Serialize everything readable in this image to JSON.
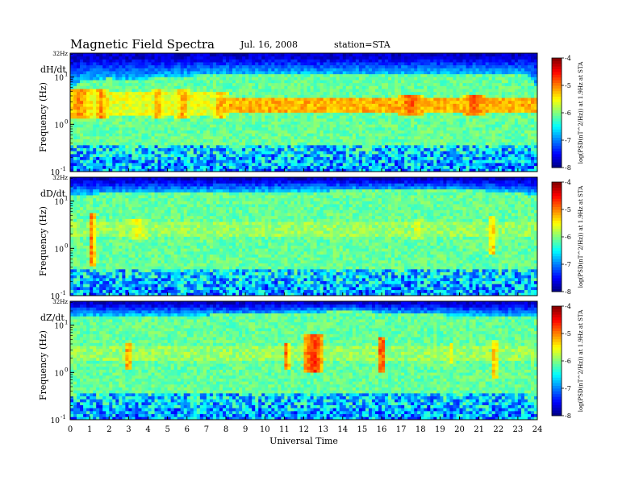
{
  "header": {
    "title": "Magnetic  Field  Spectra",
    "date": "Jul.  16, 2008",
    "station": "station=STA"
  },
  "chart_data": [
    {
      "type": "heatmap",
      "component": "dH/dt",
      "ylabel": "Frequency  (Hz)",
      "y_scale": "log",
      "ylim": [
        0.1,
        32
      ],
      "y_ticks": [
        {
          "value": 32,
          "label": "32Hz"
        },
        {
          "value": 10,
          "label": "10"
        },
        {
          "value": 1,
          "label": "10"
        },
        {
          "value": 0.1,
          "label": "10"
        }
      ],
      "y_tick_exponents": [
        "",
        "1",
        "0",
        "-1"
      ],
      "xlim": [
        0,
        24
      ],
      "colorbar": {
        "label": "log(PSD(nT^2/Hz)) at 1.9Hz at STA",
        "range": [
          -8,
          -4
        ],
        "ticks": [
          "-4",
          "-5",
          "-6",
          "-7",
          "-8"
        ]
      },
      "upper_boundary_hz": [
        [
          0,
          5.5
        ],
        [
          0.5,
          8
        ],
        [
          1,
          9
        ],
        [
          2,
          9.5
        ],
        [
          3,
          9
        ],
        [
          4,
          9.3
        ],
        [
          5,
          10.5
        ],
        [
          7,
          11
        ],
        [
          8,
          11.5
        ],
        [
          10,
          11.5
        ],
        [
          14,
          11.5
        ],
        [
          18,
          11.5
        ],
        [
          21,
          11.5
        ],
        [
          23,
          11.2
        ],
        [
          23.5,
          11
        ],
        [
          23.8,
          8
        ],
        [
          24,
          6
        ]
      ],
      "bands": [
        {
          "t0": 7.5,
          "t1": 24,
          "f0": 1.7,
          "f1": 3.5,
          "level": -5.2
        },
        {
          "t0": 0,
          "t1": 7.5,
          "f0": 1.5,
          "f1": 5,
          "level": -5.6
        }
      ],
      "bursts": [
        {
          "t": 0.5,
          "width": 1.5,
          "fmin": 1.3,
          "fmax": 5.5,
          "level": -5.0
        },
        {
          "t": 1.6,
          "width": 0.8,
          "fmin": 1.3,
          "fmax": 5.5,
          "level": -5.0
        },
        {
          "t": 4.5,
          "width": 0.6,
          "fmin": 1.3,
          "fmax": 5.5,
          "level": -5.1
        },
        {
          "t": 5.8,
          "width": 0.8,
          "fmin": 1.3,
          "fmax": 5.5,
          "level": -5.1
        },
        {
          "t": 7.7,
          "width": 0.8,
          "fmin": 1.3,
          "fmax": 5,
          "level": -5.2
        },
        {
          "t": 17.5,
          "width": 1.5,
          "fmin": 1.6,
          "fmax": 4.5,
          "level": -4.8
        },
        {
          "t": 20.8,
          "width": 1.2,
          "fmin": 1.5,
          "fmax": 4.5,
          "level": -4.8
        }
      ]
    },
    {
      "type": "heatmap",
      "component": "dD/dt",
      "ylabel": "Frequency  (Hz)",
      "y_scale": "log",
      "ylim": [
        0.1,
        32
      ],
      "y_ticks": [
        {
          "value": 32,
          "label": "32Hz"
        },
        {
          "value": 10,
          "label": "10"
        },
        {
          "value": 1,
          "label": "10"
        },
        {
          "value": 0.1,
          "label": "10"
        }
      ],
      "y_tick_exponents": [
        "",
        "1",
        "0",
        "-1"
      ],
      "xlim": [
        0,
        24
      ],
      "colorbar": {
        "label": "log(PSD(nT^2/Hz)) at 1.9Hz at STA",
        "range": [
          -8,
          -4
        ],
        "ticks": [
          "-4",
          "-5",
          "-6",
          "-7",
          "-8"
        ]
      },
      "upper_boundary_hz": [
        [
          0,
          14
        ],
        [
          3,
          15
        ],
        [
          9,
          16
        ],
        [
          15,
          17
        ],
        [
          21,
          17
        ],
        [
          23,
          15
        ],
        [
          24,
          13
        ]
      ],
      "bands": [
        {
          "t0": 0,
          "t1": 24,
          "f0": 1.7,
          "f1": 3.5,
          "level": -5.9
        }
      ],
      "bursts": [
        {
          "t": 1.1,
          "width": 0.35,
          "fmin": 0.4,
          "fmax": 6,
          "level": -4.9
        },
        {
          "t": 3.5,
          "width": 1.5,
          "fmin": 1.5,
          "fmax": 4.5,
          "level": -5.5
        },
        {
          "t": 17.8,
          "width": 1.0,
          "fmin": 1.5,
          "fmax": 4.5,
          "level": -5.6
        },
        {
          "t": 21.7,
          "width": 0.4,
          "fmin": 0.8,
          "fmax": 5,
          "level": -5.2
        }
      ]
    },
    {
      "type": "heatmap",
      "component": "dZ/dt",
      "ylabel": "Frequency  (Hz)",
      "y_scale": "log",
      "ylim": [
        0.1,
        32
      ],
      "y_ticks": [
        {
          "value": 32,
          "label": "32Hz"
        },
        {
          "value": 10,
          "label": "10"
        },
        {
          "value": 1,
          "label": "10"
        },
        {
          "value": 0.1,
          "label": "10"
        }
      ],
      "y_tick_exponents": [
        "",
        "1",
        "0",
        "-1"
      ],
      "xlim": [
        0,
        24
      ],
      "xlabel": "Universal Time",
      "x_tick_labels": [
        "0",
        "1",
        "2",
        "3",
        "4",
        "5",
        "6",
        "7",
        "8",
        "9",
        "10",
        "11",
        "12",
        "13",
        "14",
        "15",
        "16",
        "17",
        "18",
        "19",
        "20",
        "21",
        "22",
        "23",
        "24"
      ],
      "colorbar": {
        "label": "log(PSD(nT^2/Hz)) at 1.9Hz at STA",
        "range": [
          -8,
          -4
        ],
        "ticks": [
          "-4",
          "-5",
          "-6",
          "-7",
          "-8"
        ]
      },
      "upper_boundary_hz": [
        [
          0,
          16
        ],
        [
          10,
          17
        ],
        [
          13,
          19
        ],
        [
          14.5,
          22
        ],
        [
          16,
          18
        ],
        [
          24,
          15
        ]
      ],
      "bands": [
        {
          "t0": 0,
          "t1": 24,
          "f0": 1.7,
          "f1": 3.5,
          "level": -5.9
        }
      ],
      "bursts": [
        {
          "t": 3.0,
          "width": 0.35,
          "fmin": 1.2,
          "fmax": 4.5,
          "level": -4.9
        },
        {
          "t": 11.1,
          "width": 0.35,
          "fmin": 1.2,
          "fmax": 4.5,
          "level": -4.9
        },
        {
          "t": 12.5,
          "width": 0.9,
          "fmin": 1.0,
          "fmax": 7,
          "level": -4.6
        },
        {
          "t": 16.0,
          "width": 0.5,
          "fmin": 1.0,
          "fmax": 6,
          "level": -4.7
        },
        {
          "t": 19.6,
          "width": 0.5,
          "fmin": 1.5,
          "fmax": 4,
          "level": -5.6
        },
        {
          "t": 21.8,
          "width": 0.4,
          "fmin": 0.8,
          "fmax": 5,
          "level": -5.2
        }
      ]
    }
  ]
}
